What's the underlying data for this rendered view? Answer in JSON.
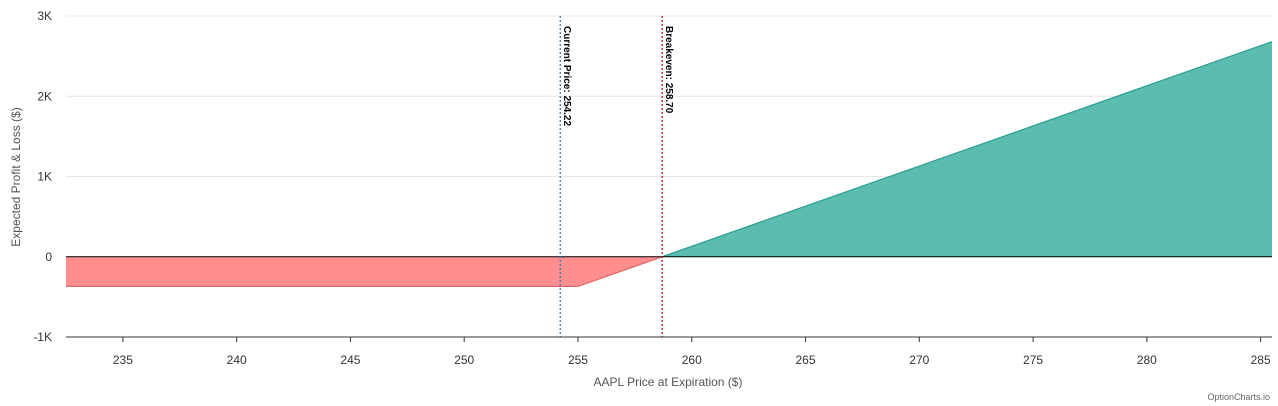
{
  "credit": "OptionCharts.io",
  "chart_data": {
    "type": "area",
    "title": "",
    "xlabel": "AAPL Price at Expiration ($)",
    "ylabel": "Expected Profit & Loss ($)",
    "xlim": [
      232.5,
      285.5
    ],
    "ylim": [
      -1000,
      3000
    ],
    "x_ticks": [
      235,
      240,
      245,
      250,
      255,
      260,
      265,
      270,
      275,
      280,
      285
    ],
    "x_tick_labels": [
      "235",
      "240",
      "245",
      "250",
      "255",
      "260",
      "265",
      "270",
      "275",
      "280",
      "285"
    ],
    "y_ticks": [
      -1000,
      0,
      1000,
      2000,
      3000
    ],
    "y_tick_labels": [
      "-1K",
      "0",
      "1K",
      "2K",
      "3K"
    ],
    "grid": "horizontal",
    "series": [
      {
        "x": [
          232.5,
          255,
          258.7,
          285.5
        ],
        "y": [
          -370,
          -370,
          0,
          2680
        ]
      }
    ],
    "reference_lines": [
      {
        "x": 254.22,
        "label": "Current Price: 254.22",
        "color": "#1f78b4",
        "style": "dotted"
      },
      {
        "x": 258.7,
        "label": "Breakeven: 258.70",
        "color": "#cc0000",
        "style": "dotted"
      }
    ],
    "colors": {
      "profit": "#5bbdb0",
      "profit_line": "#2a9d8f",
      "loss": "#ff8f8f",
      "loss_line": "#e06666"
    }
  }
}
